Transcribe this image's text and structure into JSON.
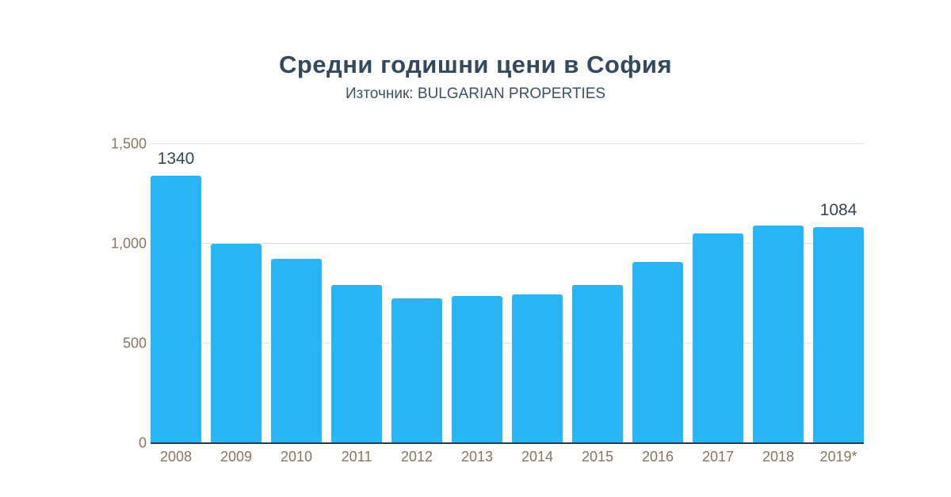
{
  "header": {
    "title": "Средни годишни цени в София",
    "subtitle": "Източник: BULGARIAN PROPERTIES"
  },
  "chart_data": {
    "type": "bar",
    "title": "Средни годишни цени в София",
    "subtitle": "Източник: BULGARIAN PROPERTIES",
    "categories": [
      "2008",
      "2009",
      "2010",
      "2011",
      "2012",
      "2013",
      "2014",
      "2015",
      "2016",
      "2017",
      "2018",
      "2019*"
    ],
    "values": [
      1340,
      1000,
      925,
      795,
      725,
      740,
      745,
      795,
      910,
      1050,
      1090,
      1084
    ],
    "value_labels": [
      "1340",
      "",
      "",
      "",
      "",
      "",
      "",
      "",
      "",
      "",
      "",
      "1084"
    ],
    "xlabel": "",
    "ylabel": "",
    "ylim": [
      0,
      1500
    ],
    "yticks": [
      {
        "value": 0,
        "label": "0"
      },
      {
        "value": 500,
        "label": "500"
      },
      {
        "value": 1000,
        "label": "1,000"
      },
      {
        "value": 1500,
        "label": "1,500"
      }
    ],
    "grid": true,
    "legend": false,
    "colors": {
      "bar": "#29b6f6",
      "title": "#34495e",
      "subtitle": "#3d5166",
      "axis_ticks": "#8d7360",
      "value_label": "#33475b",
      "gridline": "#e3e3e3",
      "axis_line": "#2b3a4a",
      "background": "#ffffff"
    }
  }
}
